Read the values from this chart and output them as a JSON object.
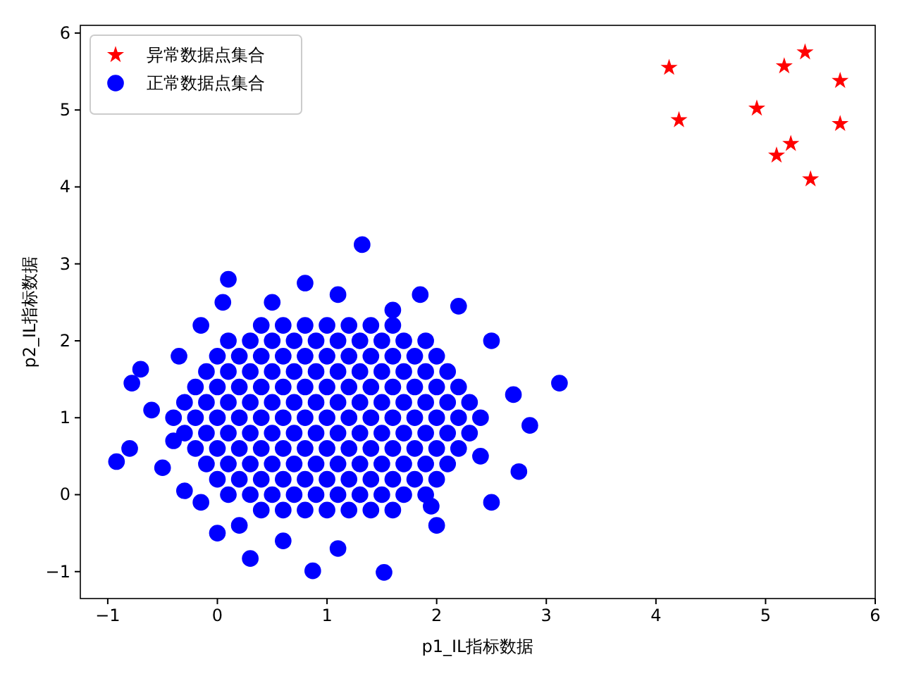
{
  "chart_data": {
    "type": "scatter",
    "xlabel": "p1_IL指标数据",
    "ylabel": "p2_IL指标数据",
    "xlim": [
      -1.25,
      6.0
    ],
    "ylim": [
      -1.35,
      6.1
    ],
    "xticks": [
      -1,
      0,
      1,
      2,
      3,
      4,
      5,
      6
    ],
    "yticks": [
      -1,
      0,
      1,
      2,
      3,
      4,
      5,
      6
    ],
    "grid": false,
    "legend": "top left",
    "series": [
      {
        "name": "异常数据点集合",
        "color": "#ff0000",
        "marker": "star",
        "x": [
          4.12,
          4.21,
          4.92,
          5.17,
          5.36,
          5.68,
          5.23,
          5.1,
          5.41,
          5.68
        ],
        "values": [
          5.55,
          4.87,
          5.02,
          5.57,
          5.75,
          5.38,
          4.56,
          4.41,
          4.1,
          4.82
        ]
      },
      {
        "name": "正常数据点集合",
        "color": "#0000ff",
        "marker": "circle",
        "x": [
          0.4,
          0.6,
          0.8,
          1.0,
          1.2,
          1.4,
          1.6,
          0.1,
          0.3,
          0.5,
          0.7,
          0.9,
          1.1,
          1.3,
          1.5,
          1.7,
          1.9,
          0.0,
          0.2,
          0.4,
          0.6,
          0.8,
          1.0,
          1.2,
          1.4,
          1.6,
          1.8,
          2.0,
          -0.1,
          0.1,
          0.3,
          0.5,
          0.7,
          0.9,
          1.1,
          1.3,
          1.5,
          1.7,
          1.9,
          2.1,
          -0.2,
          0.0,
          0.2,
          0.4,
          0.6,
          0.8,
          1.0,
          1.2,
          1.4,
          1.6,
          1.8,
          2.0,
          2.2,
          -0.3,
          -0.1,
          0.1,
          0.3,
          0.5,
          0.7,
          0.9,
          1.1,
          1.3,
          1.5,
          1.7,
          1.9,
          2.1,
          2.3,
          -0.4,
          -0.2,
          0.0,
          0.2,
          0.4,
          0.6,
          0.8,
          1.0,
          1.2,
          1.4,
          1.6,
          1.8,
          2.0,
          2.2,
          2.4,
          -0.3,
          -0.1,
          0.1,
          0.3,
          0.5,
          0.7,
          0.9,
          1.1,
          1.3,
          1.5,
          1.7,
          1.9,
          2.1,
          2.3,
          -0.2,
          0.0,
          0.2,
          0.4,
          0.6,
          0.8,
          1.0,
          1.2,
          1.4,
          1.6,
          1.8,
          2.0,
          2.2,
          -0.1,
          0.1,
          0.3,
          0.5,
          0.7,
          0.9,
          1.1,
          1.3,
          1.5,
          1.7,
          1.9,
          2.1,
          0.0,
          0.2,
          0.4,
          0.6,
          0.8,
          1.0,
          1.2,
          1.4,
          1.6,
          1.8,
          2.0,
          0.1,
          0.3,
          0.5,
          0.7,
          0.9,
          1.1,
          1.3,
          1.5,
          1.7,
          1.9,
          0.4,
          0.6,
          0.8,
          1.0,
          1.2,
          1.4,
          1.6,
          -0.92,
          -0.8,
          -0.78,
          -0.7,
          -0.6,
          -0.5,
          -0.35,
          -0.3,
          -0.15,
          0.3,
          0.0,
          0.87,
          0.6,
          1.1,
          1.52,
          1.95,
          2.5,
          2.75,
          2.85,
          3.12,
          2.7,
          2.5,
          2.2,
          1.85,
          1.32,
          0.8,
          0.1,
          0.05,
          -0.15,
          1.1,
          2.4,
          -0.4,
          0.5,
          1.6,
          2.0,
          0.2
        ],
        "values": [
          -0.2,
          -0.2,
          -0.2,
          -0.2,
          -0.2,
          -0.2,
          -0.2,
          0,
          0,
          0,
          0,
          0,
          0,
          0,
          0,
          0,
          0,
          0.2,
          0.2,
          0.2,
          0.2,
          0.2,
          0.2,
          0.2,
          0.2,
          0.2,
          0.2,
          0.2,
          0.4,
          0.4,
          0.4,
          0.4,
          0.4,
          0.4,
          0.4,
          0.4,
          0.4,
          0.4,
          0.4,
          0.4,
          0.6,
          0.6,
          0.6,
          0.6,
          0.6,
          0.6,
          0.6,
          0.6,
          0.6,
          0.6,
          0.6,
          0.6,
          0.6,
          0.8,
          0.8,
          0.8,
          0.8,
          0.8,
          0.8,
          0.8,
          0.8,
          0.8,
          0.8,
          0.8,
          0.8,
          0.8,
          0.8,
          1,
          1,
          1,
          1,
          1,
          1,
          1,
          1,
          1,
          1,
          1,
          1,
          1,
          1,
          1,
          1.2,
          1.2,
          1.2,
          1.2,
          1.2,
          1.2,
          1.2,
          1.2,
          1.2,
          1.2,
          1.2,
          1.2,
          1.2,
          1.2,
          1.4,
          1.4,
          1.4,
          1.4,
          1.4,
          1.4,
          1.4,
          1.4,
          1.4,
          1.4,
          1.4,
          1.4,
          1.4,
          1.6,
          1.6,
          1.6,
          1.6,
          1.6,
          1.6,
          1.6,
          1.6,
          1.6,
          1.6,
          1.6,
          1.6,
          1.8,
          1.8,
          1.8,
          1.8,
          1.8,
          1.8,
          1.8,
          1.8,
          1.8,
          1.8,
          1.8,
          2,
          2,
          2,
          2,
          2,
          2,
          2,
          2,
          2,
          2,
          2.2,
          2.2,
          2.2,
          2.2,
          2.2,
          2.2,
          2.2,
          0.43,
          0.6,
          1.45,
          1.63,
          1.1,
          0.35,
          1.8,
          0.05,
          -0.1,
          -0.83,
          -0.5,
          -0.99,
          -0.6,
          -0.7,
          -1.01,
          -0.15,
          -0.1,
          0.3,
          0.9,
          1.45,
          1.3,
          2.0,
          2.45,
          2.6,
          3.25,
          2.75,
          2.8,
          2.5,
          2.2,
          2.6,
          0.5,
          0.7,
          2.5,
          2.4,
          -0.4,
          -0.4
        ]
      }
    ]
  }
}
